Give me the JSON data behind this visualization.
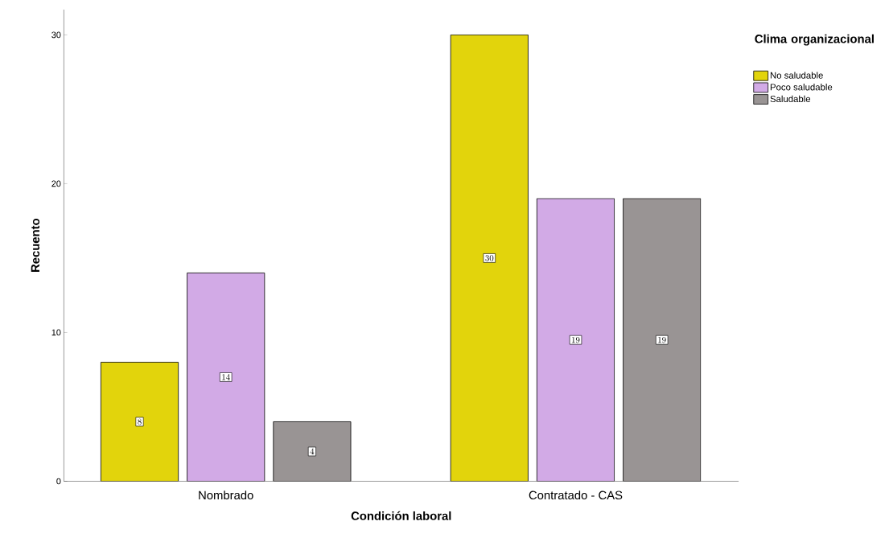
{
  "chart_data": {
    "type": "bar",
    "xlabel": "Condición laboral",
    "ylabel": "Recuento",
    "legend_title": "Clima organizacional",
    "categories": [
      "Nombrado",
      "Contratado - CAS"
    ],
    "series": [
      {
        "name": "No saludable",
        "color": "#e2d40c",
        "values": [
          8,
          30
        ]
      },
      {
        "name": "Poco saludable",
        "color": "#d2aae6",
        "values": [
          14,
          19
        ]
      },
      {
        "name": "Saludable",
        "color": "#999494",
        "values": [
          4,
          19
        ]
      }
    ],
    "ylim": [
      0,
      31.7
    ],
    "yticks": [
      0,
      10,
      20,
      30
    ],
    "grid": false,
    "legend": "top right",
    "data_labels": true
  }
}
